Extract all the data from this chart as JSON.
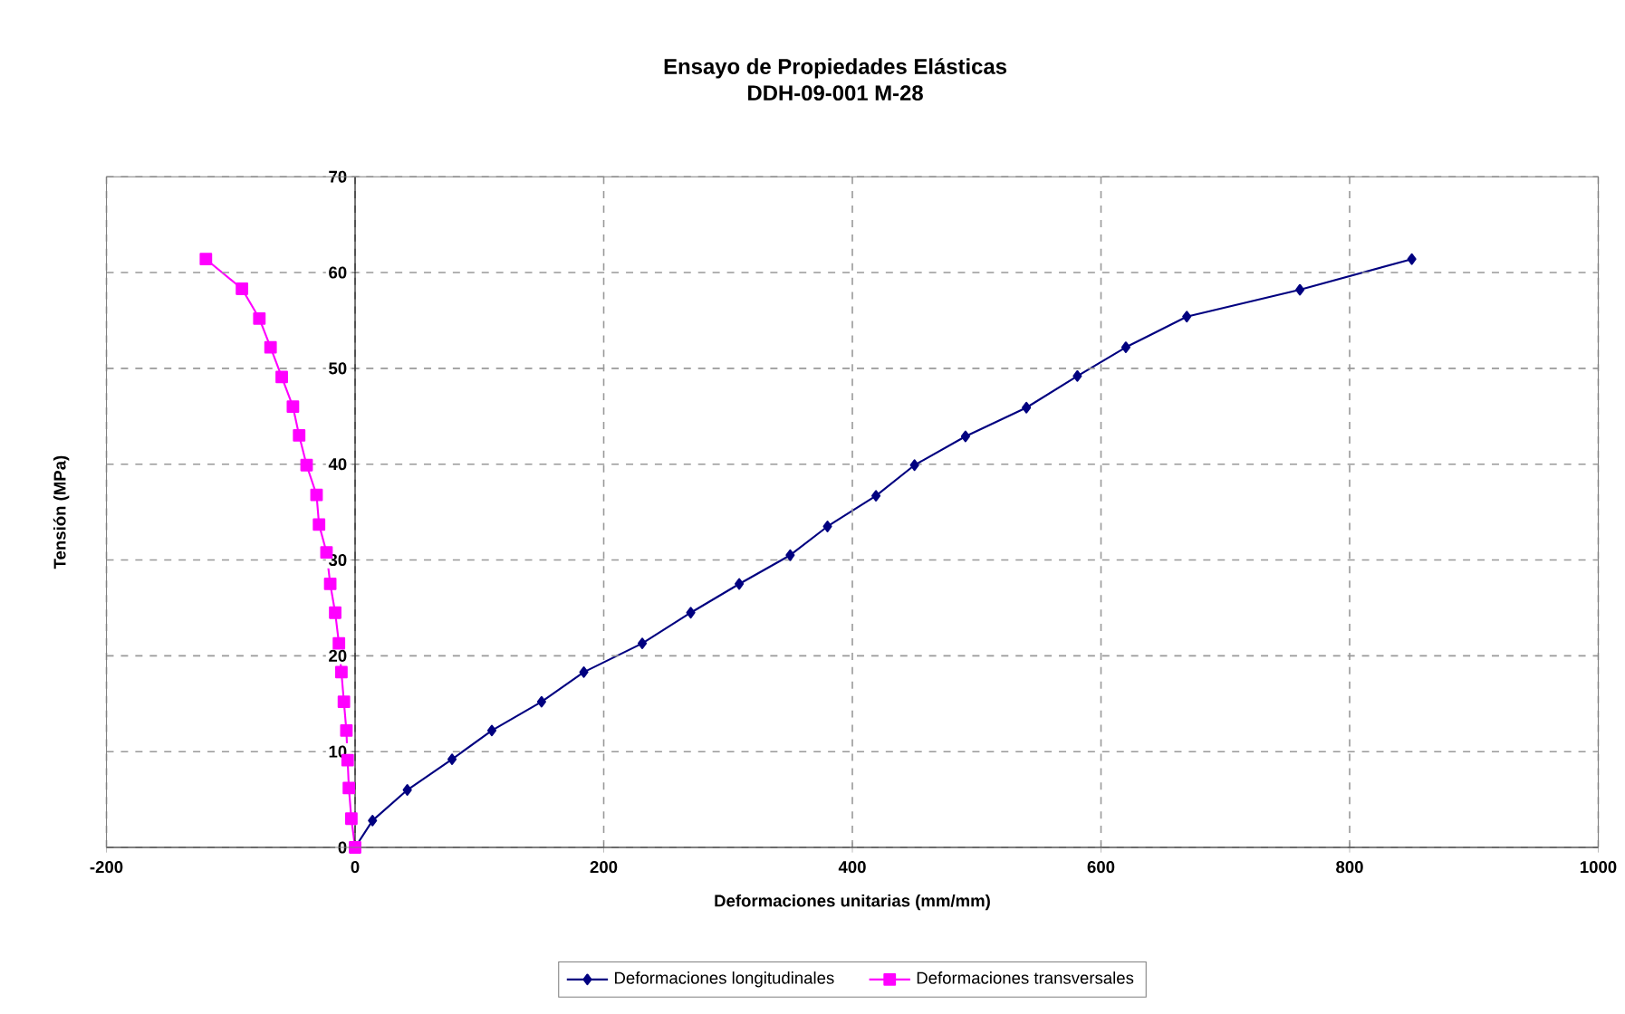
{
  "chart_data": {
    "type": "line",
    "title": "Ensayo de Propiedades Elásticas",
    "subtitle": "DDH-09-001  M-28",
    "xlabel": "Deformaciones unitarias (mm/mm)",
    "ylabel": "Tensión (MPa)",
    "xlim": [
      -200,
      1000
    ],
    "xticks": [
      -200,
      0,
      200,
      400,
      600,
      800,
      1000
    ],
    "ylim": [
      0,
      70
    ],
    "yticks": [
      0,
      10,
      20,
      30,
      40,
      50,
      60,
      70
    ],
    "grid": true,
    "legend": "bottom",
    "line_style": "solid",
    "series": [
      {
        "name": "Deformaciones longitudinales",
        "color": "#000080",
        "marker": "diamond",
        "x": [
          0,
          14,
          42,
          78,
          110,
          150,
          184,
          231,
          270,
          309,
          350,
          380,
          419,
          450,
          491,
          540,
          581,
          620,
          669,
          760,
          850
        ],
        "values": [
          0,
          2.8,
          6,
          9.2,
          12.2,
          15.2,
          18.3,
          21.3,
          24.5,
          27.5,
          30.5,
          33.5,
          36.7,
          39.9,
          42.9,
          45.9,
          49.2,
          52.2,
          55.4,
          58.2,
          61.4
        ]
      },
      {
        "name": "Deformaciones transversales",
        "color": "#ff00ff",
        "marker": "square",
        "x": [
          0,
          -3,
          -5,
          -6,
          -7,
          -9,
          -11,
          -13,
          -16,
          -20,
          -23,
          -29,
          -31,
          -39,
          -45,
          -50,
          -59,
          -68,
          -77,
          -91,
          -120
        ],
        "values": [
          0,
          3,
          6.2,
          9.1,
          12.2,
          15.2,
          18.3,
          21.3,
          24.5,
          27.5,
          30.8,
          33.7,
          36.8,
          39.9,
          43,
          46,
          49.1,
          52.2,
          55.2,
          58.3,
          61.4
        ]
      }
    ]
  }
}
